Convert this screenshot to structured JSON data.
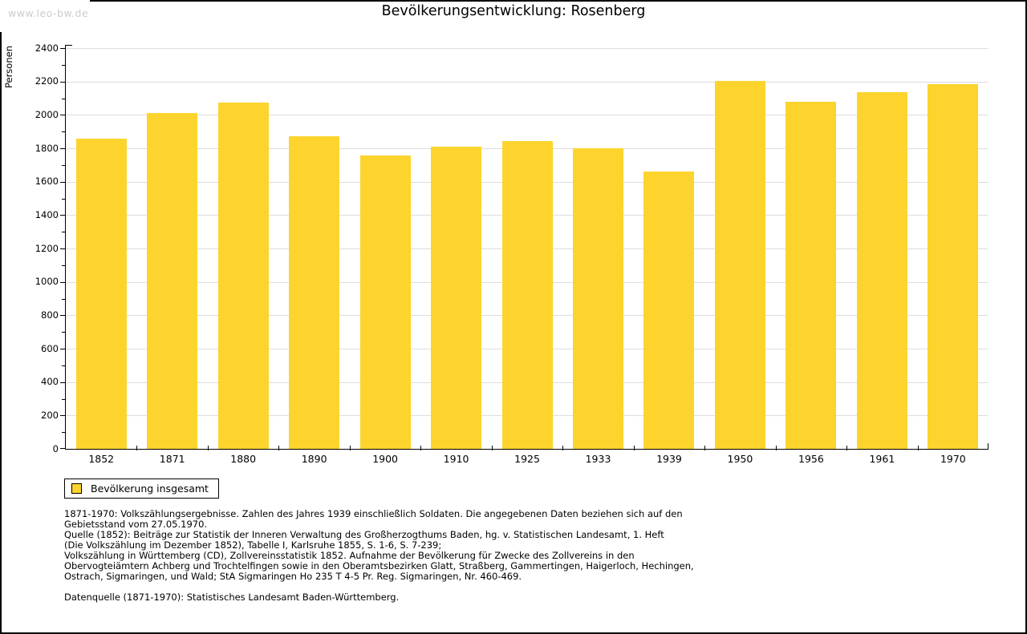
{
  "page": {
    "watermark": "www.leo-bw.de",
    "title": "Bevölkerungsentwicklung: Rosenberg"
  },
  "chart_data": {
    "type": "bar",
    "title": "Bevölkerungsentwicklung: Rosenberg",
    "ylabel": "Personen",
    "xlabel": "",
    "categories": [
      "1852",
      "1871",
      "1880",
      "1890",
      "1900",
      "1910",
      "1925",
      "1933",
      "1939",
      "1950",
      "1956",
      "1961",
      "1970"
    ],
    "series": [
      {
        "name": "Bevölkerung insgesamt",
        "values": [
          1860,
          2010,
          2075,
          1870,
          1755,
          1810,
          1845,
          1800,
          1660,
          2205,
          2080,
          2135,
          2185
        ]
      }
    ],
    "ylim": [
      0,
      2400
    ],
    "ytick_major_step": 200,
    "ytick_minor_step": 100,
    "grid": true,
    "legend_position": "bottom-left",
    "bar_color": "#FCD42D"
  },
  "legend": {
    "label": "Bevölkerung insgesamt",
    "swatch_color": "#FCD42D"
  },
  "footnotes": {
    "lines": [
      "1871-1970: Volkszählungsergebnisse. Zahlen des Jahres 1939 einschließlich Soldaten. Die angegebenen Daten beziehen sich auf den",
      "Gebietsstand vom 27.05.1970.",
      "Quelle (1852): Beiträge zur Statistik der Inneren Verwaltung des Großherzogthums Baden, hg. v. Statistischen Landesamt, 1. Heft",
      "(Die Volkszählung im Dezember 1852), Tabelle I, Karlsruhe 1855, S. 1-6, S. 7-239;",
      "Volkszählung in Württemberg (CD), Zollvereinsstatistik 1852. Aufnahme der Bevölkerung für Zwecke des Zollvereins in den",
      "Obervogteiämtern Achberg und Trochtelfingen sowie in den Oberamtsbezirken Glatt, Straßberg, Gammertingen, Haigerloch, Hechingen,",
      "Ostrach, Sigmaringen, und Wald; StA Sigmaringen Ho 235 T 4-5 Pr. Reg. Sigmaringen, Nr. 460-469."
    ],
    "datasource": "Datenquelle (1871-1970): Statistisches Landesamt Baden-Württemberg."
  },
  "colors": {
    "bar": "#FCD42D",
    "grid": "#DDDDDD",
    "watermark": "#CCCCCC",
    "axis": "#000000"
  }
}
